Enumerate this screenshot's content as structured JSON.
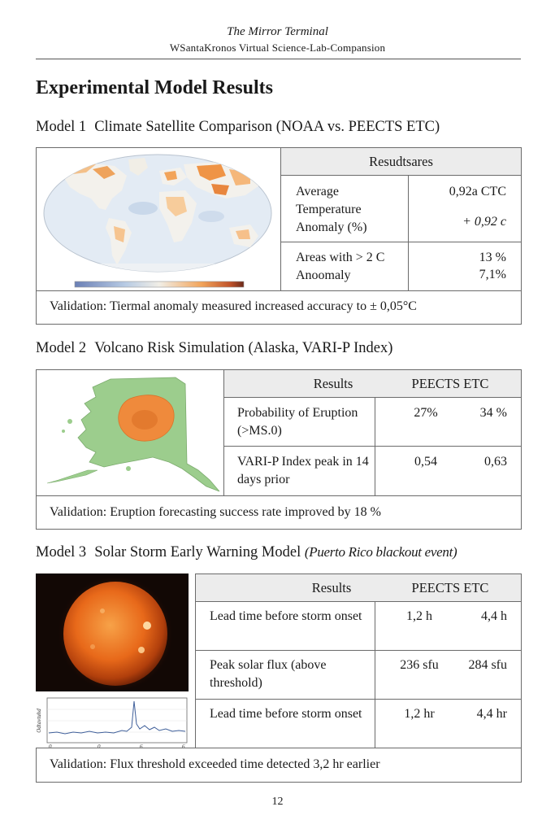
{
  "header": {
    "title": "The Mirror Terminal",
    "subtitle": "WSantaKronos Virtual Science-Lab-Compansion"
  },
  "page_heading": "Experimental Model Results",
  "models": [
    {
      "number": "Model 1",
      "title": "Climate Satellite Comparison (NOAA vs. PEECTS ETC)",
      "table_header": "Resudtsares",
      "rows": [
        {
          "label": "Average Temperature Anomaly (%)",
          "value1": "0,92a CTC",
          "value2": "+ 0,92 c"
        },
        {
          "label": "Areas with > 2 C Anoomaly",
          "value1": "13 %",
          "value2": "7,1%"
        }
      ],
      "validation_label": "Validation:",
      "validation": "Tiermal anomaly measured increased accuracy to ± 0,05°C"
    },
    {
      "number": "Model 2",
      "title": "Volcano Risk Simulation (Alaska, VARI-P Index)",
      "col_results": "Results",
      "col_peects": "PEECTS ETC",
      "rows": [
        {
          "label": "Probability of Eruption (>MS.0)",
          "value1": "27%",
          "value2": "34 %"
        },
        {
          "label": "VARI-P Index peak in 14 days prior",
          "value1": "0,54",
          "value2": "0,63"
        }
      ],
      "validation_label": "Validation:",
      "validation": "Eruption forecasting success rate improved by 18 %"
    },
    {
      "number": "Model 3",
      "title": "Solar Storm Early Warning Model",
      "subtitle_italic": "(Puerto Rico blackout event)",
      "col_results": "Results",
      "col_peects": "PEECTS ETC",
      "rows": [
        {
          "label": "Lead time before storm onset",
          "value1": "1,2 h",
          "value2": "4,4 h"
        },
        {
          "label": "Peak solar flux (above threshold)",
          "value1": "236 sfu",
          "value2": "284 sfu"
        },
        {
          "label": "Lead time before storm onset",
          "value1": "1,2 hr",
          "value2": "4,4 hr"
        }
      ],
      "validation_label": "Validation:",
      "validation": "Flux threshold exceeded time detected 3,2 hr earlier"
    }
  ],
  "flux_plot": {
    "ylabel": "Odtavtuhd",
    "xticks": [
      "0",
      "0",
      "6",
      "6"
    ]
  },
  "page_number": "12",
  "colors": {
    "rule": "#555555",
    "table_border": "#6b6b6b",
    "header_fill": "#ececec",
    "map_ocean": "#dfe8f2",
    "map_land": "#f3f1ec",
    "anomaly_warm": "#f2a45a",
    "alaska_green": "#9ccd8d",
    "volcano_orange": "#ef8a3c",
    "sun_orange": "#e8691a"
  }
}
